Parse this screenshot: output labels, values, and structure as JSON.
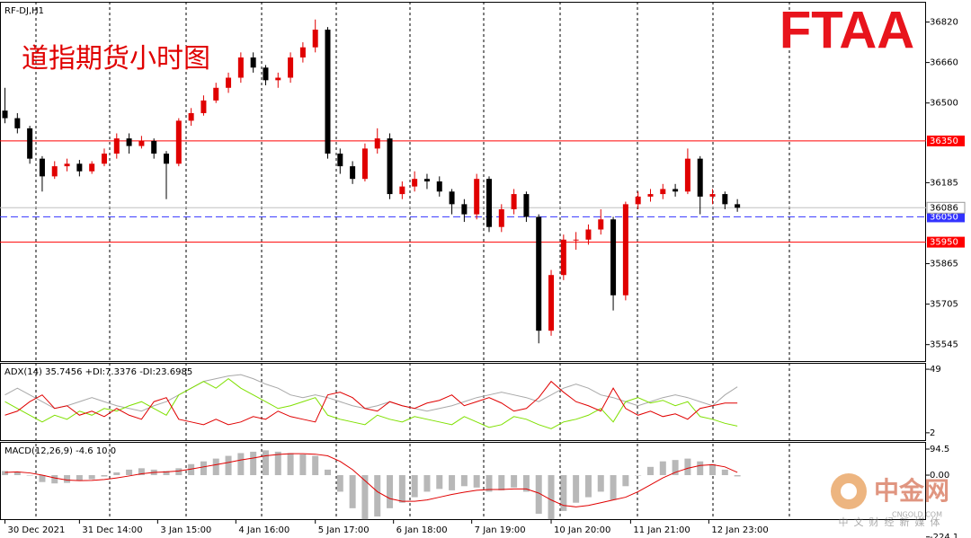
{
  "chart_data": [
    {
      "type": "candlestick",
      "symbol": "RF-DJ,H1",
      "title": "道指期货小时图",
      "up_color": "#e00000",
      "down_color": "#000000",
      "xlim": [
        -0.4,
        74.2
      ],
      "xticks": [
        {
          "value": 0,
          "label": "30 Dec 2021"
        },
        {
          "value": 6,
          "label": "31 Dec 14:00"
        },
        {
          "value": 12.3,
          "label": "3 Jan 15:00"
        },
        {
          "value": 18.6,
          "label": "4 Jan 16:00"
        },
        {
          "value": 25,
          "label": "5 Jan 17:00"
        },
        {
          "value": 31.3,
          "label": "6 Jan 18:00"
        },
        {
          "value": 37.6,
          "label": "7 Jan 19:00"
        },
        {
          "value": 44,
          "label": "10 Jan 20:00"
        },
        {
          "value": 50.4,
          "label": "11 Jan 21:00"
        },
        {
          "value": 56.7,
          "label": "12 Jan 23:00"
        }
      ],
      "ylim": [
        35480,
        36900
      ],
      "yticks": [
        36820,
        36660,
        36500,
        36185,
        35865,
        35705,
        35545
      ],
      "levels": [
        {
          "value": 36350,
          "color": "#ff0000",
          "style": "solid"
        },
        {
          "value": 35950,
          "color": "#ff0000",
          "style": "solid"
        },
        {
          "value": 36050,
          "color": "#3333ff",
          "style": "dashed"
        }
      ],
      "current_price": 36086,
      "open": [
        36470,
        36440,
        36400,
        36280,
        36210,
        36250,
        36260,
        36230,
        36260,
        36300,
        36360,
        36330,
        36350,
        36300,
        36260,
        36430,
        36460,
        36510,
        36560,
        36600,
        36680,
        36640,
        36590,
        36600,
        36680,
        36720,
        36790,
        36300,
        36250,
        36200,
        36320,
        36360,
        36140,
        36170,
        36200,
        36190,
        36150,
        36100,
        36060,
        36200,
        36010,
        36080,
        36140,
        36050,
        35600,
        35820,
        35960,
        35960,
        36000,
        36040,
        35740,
        36100,
        36130,
        36140,
        36160,
        36150,
        36280,
        36130,
        36140,
        36100
      ],
      "high": [
        36560,
        36460,
        36410,
        36290,
        36270,
        36280,
        36275,
        36270,
        36320,
        36380,
        36380,
        36370,
        36360,
        36310,
        36440,
        36480,
        36530,
        36580,
        36620,
        36700,
        36700,
        36650,
        36620,
        36700,
        36740,
        36830,
        36800,
        36320,
        36270,
        36340,
        36400,
        36380,
        36190,
        36230,
        36220,
        36210,
        36160,
        36120,
        36220,
        36210,
        36100,
        36160,
        36150,
        36060,
        35840,
        35980,
        35990,
        36020,
        36080,
        36050,
        36110,
        36150,
        36160,
        36180,
        36180,
        36320,
        36290,
        36160,
        36150,
        36120
      ],
      "low": [
        36420,
        36380,
        36260,
        36150,
        36200,
        36230,
        36210,
        36220,
        36250,
        36280,
        36300,
        36320,
        36280,
        36120,
        36250,
        36410,
        36450,
        36500,
        36540,
        36580,
        36620,
        36570,
        36560,
        36580,
        36660,
        36700,
        36280,
        36220,
        36180,
        36190,
        36300,
        36120,
        36120,
        36150,
        36160,
        36130,
        36060,
        36030,
        36040,
        35990,
        35990,
        36060,
        36030,
        35550,
        35580,
        35800,
        35920,
        35940,
        35980,
        35680,
        35720,
        36080,
        36110,
        36120,
        36130,
        36140,
        36060,
        36100,
        36080,
        36070
      ],
      "close": [
        36440,
        36400,
        36280,
        36210,
        36250,
        36260,
        36230,
        36260,
        36300,
        36360,
        36330,
        36350,
        36300,
        36260,
        36430,
        36460,
        36510,
        36560,
        36600,
        36680,
        36640,
        36590,
        36600,
        36680,
        36720,
        36790,
        36300,
        36250,
        36200,
        36320,
        36360,
        36140,
        36170,
        36200,
        36190,
        36150,
        36100,
        36060,
        36200,
        36010,
        36080,
        36140,
        36050,
        35600,
        35820,
        35960,
        35960,
        36000,
        36040,
        35740,
        36100,
        36130,
        36140,
        36160,
        36150,
        36280,
        36130,
        36140,
        36100,
        36086
      ]
    },
    {
      "type": "line",
      "title": "ADX(14) 35.7456 +DI:7.3376 -DI:23.6985",
      "ylim": [
        -3.4,
        53.7
      ],
      "yticks": [
        2,
        49
      ],
      "series": [
        {
          "color": "#a8a8a8",
          "values": [
            30,
            35,
            30,
            25,
            20,
            22,
            25,
            28,
            25,
            22,
            20,
            18,
            22,
            25,
            30,
            35,
            40,
            42,
            44,
            45,
            42,
            38,
            35,
            30,
            28,
            30,
            28,
            25,
            22,
            20,
            22,
            25,
            22,
            20,
            18,
            20,
            22,
            25,
            28,
            30,
            32,
            30,
            28,
            25,
            30,
            35,
            38,
            35,
            30,
            28,
            25,
            22,
            25,
            28,
            30,
            28,
            25,
            22,
            30,
            36
          ]
        },
        {
          "color": "#7fe000",
          "values": [
            25,
            20,
            15,
            10,
            15,
            12,
            18,
            15,
            20,
            18,
            22,
            25,
            20,
            15,
            30,
            35,
            40,
            35,
            42,
            35,
            30,
            25,
            20,
            22,
            25,
            28,
            15,
            12,
            10,
            8,
            15,
            12,
            10,
            14,
            12,
            10,
            8,
            14,
            10,
            6,
            8,
            14,
            12,
            8,
            5,
            10,
            12,
            15,
            20,
            10,
            25,
            28,
            24,
            26,
            22,
            25,
            14,
            12,
            9,
            7
          ]
        },
        {
          "color": "#e00000",
          "values": [
            15,
            18,
            25,
            30,
            20,
            22,
            15,
            18,
            14,
            20,
            15,
            12,
            25,
            28,
            12,
            10,
            8,
            12,
            8,
            10,
            14,
            12,
            18,
            14,
            12,
            10,
            30,
            32,
            28,
            20,
            18,
            25,
            22,
            20,
            24,
            26,
            30,
            22,
            25,
            28,
            24,
            18,
            20,
            28,
            40,
            32,
            25,
            22,
            18,
            35,
            20,
            15,
            18,
            14,
            16,
            12,
            20,
            22,
            24,
            24
          ]
        }
      ]
    },
    {
      "type": "macd",
      "title": "MACD(12,26,9) -4.6 10.0",
      "ylim": [
        -224.1,
        120.6
      ],
      "yticks": [
        94.5,
        {
          "value": 0,
          "label": "0.00"
        },
        -224.1
      ],
      "hist_color": "#b8b8b8",
      "signal_color": "#e00000",
      "values": [
        15,
        12,
        0,
        -25,
        -30,
        -28,
        -20,
        -15,
        -5,
        10,
        20,
        25,
        20,
        15,
        25,
        40,
        50,
        60,
        70,
        80,
        85,
        90,
        85,
        80,
        75,
        70,
        20,
        -60,
        -120,
        -160,
        -150,
        -120,
        -100,
        -80,
        -60,
        -50,
        -55,
        -40,
        -45,
        -60,
        -55,
        -45,
        -60,
        -140,
        -160,
        -130,
        -100,
        -80,
        -60,
        -90,
        -40,
        0,
        30,
        50,
        55,
        60,
        50,
        40,
        20,
        -4.6
      ],
      "signal": [
        10,
        12,
        8,
        0,
        -10,
        -18,
        -20,
        -19,
        -16,
        -10,
        -3,
        5,
        10,
        12,
        15,
        22,
        30,
        38,
        46,
        55,
        62,
        70,
        75,
        78,
        78,
        76,
        70,
        50,
        20,
        -20,
        -60,
        -85,
        -95,
        -95,
        -90,
        -80,
        -70,
        -62,
        -55,
        -52,
        -52,
        -50,
        -50,
        -65,
        -90,
        -110,
        -115,
        -110,
        -100,
        -90,
        -80,
        -60,
        -35,
        -10,
        10,
        25,
        35,
        38,
        30,
        10
      ]
    }
  ],
  "overlay": {
    "logo": "FTAA",
    "brand": "中金网",
    "brand_site": "CNGOLD.COM",
    "brand_tagline": "中文财经新媒体"
  }
}
